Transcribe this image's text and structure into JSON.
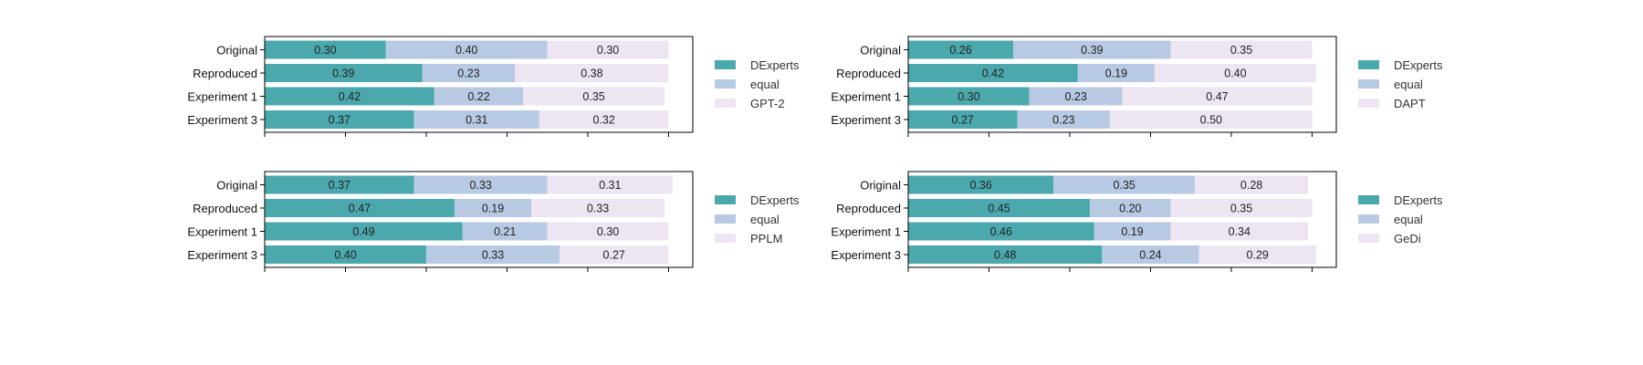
{
  "colors": {
    "dexperts": "#4ba9ad",
    "equal": "#b8cae3",
    "baseline": "#ede5f2"
  },
  "chart_data": [
    {
      "type": "bar",
      "orientation": "horizontal",
      "stacked": true,
      "categories": [
        "Original",
        "Reproduced",
        "Experiment 1",
        "Experiment 3"
      ],
      "series": [
        {
          "name": "DExperts",
          "values": [
            0.3,
            0.39,
            0.42,
            0.37
          ]
        },
        {
          "name": "equal",
          "values": [
            0.4,
            0.23,
            0.22,
            0.31
          ]
        },
        {
          "name": "GPT-2",
          "values": [
            0.3,
            0.38,
            0.35,
            0.32
          ]
        }
      ],
      "xlim": [
        0,
        1.06
      ],
      "legend_position": "right"
    },
    {
      "type": "bar",
      "orientation": "horizontal",
      "stacked": true,
      "categories": [
        "Original",
        "Reproduced",
        "Experiment 1",
        "Experiment 3"
      ],
      "series": [
        {
          "name": "DExperts",
          "values": [
            0.26,
            0.42,
            0.3,
            0.27
          ]
        },
        {
          "name": "equal",
          "values": [
            0.39,
            0.19,
            0.23,
            0.23
          ]
        },
        {
          "name": "DAPT",
          "values": [
            0.35,
            0.4,
            0.47,
            0.5
          ]
        }
      ],
      "xlim": [
        0,
        1.06
      ],
      "legend_position": "right"
    },
    {
      "type": "bar",
      "orientation": "horizontal",
      "stacked": true,
      "categories": [
        "Original",
        "Reproduced",
        "Experiment 1",
        "Experiment 3"
      ],
      "series": [
        {
          "name": "DExperts",
          "values": [
            0.37,
            0.47,
            0.49,
            0.4
          ]
        },
        {
          "name": "equal",
          "values": [
            0.33,
            0.19,
            0.21,
            0.33
          ]
        },
        {
          "name": "PPLM",
          "values": [
            0.31,
            0.33,
            0.3,
            0.27
          ]
        }
      ],
      "xlim": [
        0,
        1.06
      ],
      "legend_position": "right"
    },
    {
      "type": "bar",
      "orientation": "horizontal",
      "stacked": true,
      "categories": [
        "Original",
        "Reproduced",
        "Experiment 1",
        "Experiment 3"
      ],
      "series": [
        {
          "name": "DExperts",
          "values": [
            0.36,
            0.45,
            0.46,
            0.48
          ]
        },
        {
          "name": "equal",
          "values": [
            0.35,
            0.2,
            0.19,
            0.24
          ]
        },
        {
          "name": "GeDi",
          "values": [
            0.28,
            0.35,
            0.34,
            0.29
          ]
        }
      ],
      "xlim": [
        0,
        1.06
      ],
      "legend_position": "right"
    }
  ]
}
